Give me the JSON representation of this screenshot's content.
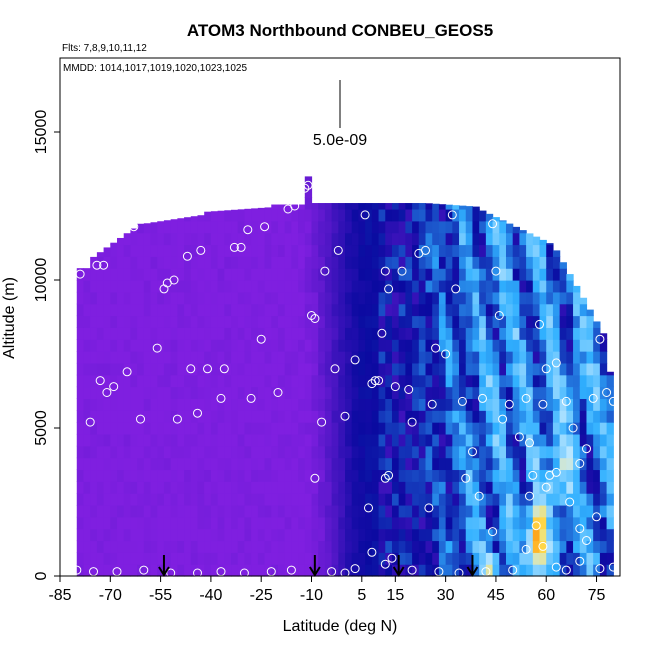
{
  "chart_data": {
    "type": "heatmap",
    "title": "ATOM3 Northbound CONBEU_GEOS5",
    "flights_label": "Flts: 7,8,9,10,11,12",
    "dates_label": "MMDD: 1014,1017,1019,1020,1023,1025",
    "xlabel": "Latitude (deg N)",
    "ylabel": "Altitude (m)",
    "xlim": [
      -85,
      82
    ],
    "ylim": [
      0,
      17500
    ],
    "x_ticks": [
      -85,
      -70,
      -55,
      -40,
      -25,
      -10,
      5,
      15,
      30,
      45,
      60,
      75
    ],
    "y_ticks": [
      0,
      5000,
      10000,
      15000
    ],
    "scale_bar_label": "5.0e-09",
    "colors": {
      "low": "#7f1fe0",
      "mid": "#0a0aa0",
      "light": "#30b0ff",
      "high_yellow": "#ffe050",
      "high_red": "#e00000"
    },
    "arrow_latitudes": [
      -54,
      -9,
      16,
      38
    ],
    "observations": [
      [
        -82,
        7800
      ],
      [
        -79,
        10200
      ],
      [
        -76,
        5200
      ],
      [
        -74,
        10500
      ],
      [
        -73,
        6600
      ],
      [
        -72,
        10500
      ],
      [
        -71,
        6200
      ],
      [
        -69,
        6400
      ],
      [
        -65,
        6900
      ],
      [
        -63,
        11800
      ],
      [
        -61,
        5300
      ],
      [
        -56,
        7700
      ],
      [
        -54,
        9700
      ],
      [
        -53,
        9900
      ],
      [
        -51,
        10000
      ],
      [
        -50,
        5300
      ],
      [
        -47,
        10800
      ],
      [
        -46,
        7000
      ],
      [
        -44,
        5500
      ],
      [
        -43,
        11000
      ],
      [
        -41,
        7000
      ],
      [
        -37,
        6000
      ],
      [
        -36,
        7000
      ],
      [
        -33,
        11100
      ],
      [
        -31,
        11100
      ],
      [
        -29,
        11700
      ],
      [
        -28,
        6000
      ],
      [
        -25,
        8000
      ],
      [
        -24,
        11800
      ],
      [
        -20,
        6200
      ],
      [
        -17,
        12400
      ],
      [
        -15,
        12500
      ],
      [
        -12,
        13100
      ],
      [
        -11,
        13200
      ],
      [
        -10,
        8800
      ],
      [
        -9,
        8700
      ],
      [
        -7,
        5200
      ],
      [
        -6,
        10300
      ],
      [
        -3,
        7000
      ],
      [
        -2,
        11000
      ],
      [
        0,
        5400
      ],
      [
        3,
        7300
      ],
      [
        6,
        12200
      ],
      [
        8,
        6500
      ],
      [
        9,
        6600
      ],
      [
        10,
        6600
      ],
      [
        11,
        8200
      ],
      [
        12,
        10300
      ],
      [
        13,
        9700
      ],
      [
        14,
        12900
      ],
      [
        15,
        6400
      ],
      [
        17,
        10300
      ],
      [
        19,
        6300
      ],
      [
        20,
        5200
      ],
      [
        22,
        10900
      ],
      [
        24,
        11000
      ],
      [
        26,
        5800
      ],
      [
        27,
        7700
      ],
      [
        30,
        7500
      ],
      [
        32,
        12200
      ],
      [
        33,
        9700
      ],
      [
        35,
        5900
      ],
      [
        38,
        4200
      ],
      [
        41,
        6000
      ],
      [
        44,
        11900
      ],
      [
        45,
        10300
      ],
      [
        46,
        8800
      ],
      [
        47,
        5300
      ],
      [
        49,
        5800
      ],
      [
        52,
        4700
      ],
      [
        54,
        6000
      ],
      [
        55,
        4500
      ],
      [
        56,
        3400
      ],
      [
        58,
        8500
      ],
      [
        59,
        5800
      ],
      [
        60,
        7000
      ],
      [
        61,
        3400
      ],
      [
        63,
        7200
      ],
      [
        66,
        5900
      ],
      [
        68,
        5000
      ],
      [
        70,
        3800
      ],
      [
        72,
        4300
      ],
      [
        74,
        6000
      ],
      [
        76,
        8000
      ],
      [
        78,
        6200
      ],
      [
        80,
        5900
      ],
      [
        -84,
        300
      ],
      [
        -80,
        200
      ],
      [
        -75,
        150
      ],
      [
        -68,
        150
      ],
      [
        -60,
        200
      ],
      [
        -52,
        100
      ],
      [
        -44,
        100
      ],
      [
        -37,
        150
      ],
      [
        -30,
        100
      ],
      [
        -22,
        150
      ],
      [
        -16,
        200
      ],
      [
        -4,
        150
      ],
      [
        0,
        100
      ],
      [
        3,
        250
      ],
      [
        8,
        800
      ],
      [
        12,
        400
      ],
      [
        20,
        200
      ],
      [
        28,
        150
      ],
      [
        34,
        100
      ],
      [
        42,
        150
      ],
      [
        50,
        200
      ],
      [
        54,
        900
      ],
      [
        57,
        1700
      ],
      [
        59,
        1000
      ],
      [
        63,
        300
      ],
      [
        66,
        200
      ],
      [
        70,
        500
      ],
      [
        76,
        250
      ],
      [
        80,
        300
      ],
      [
        -9,
        3300
      ],
      [
        7,
        2300
      ],
      [
        12,
        3300
      ],
      [
        13,
        3400
      ],
      [
        14,
        600
      ],
      [
        25,
        2300
      ],
      [
        36,
        3300
      ],
      [
        40,
        2700
      ],
      [
        44,
        1500
      ],
      [
        55,
        2700
      ],
      [
        60,
        3000
      ],
      [
        63,
        3500
      ],
      [
        67,
        2500
      ],
      [
        70,
        1600
      ],
      [
        72,
        1200
      ],
      [
        75,
        2000
      ]
    ]
  }
}
